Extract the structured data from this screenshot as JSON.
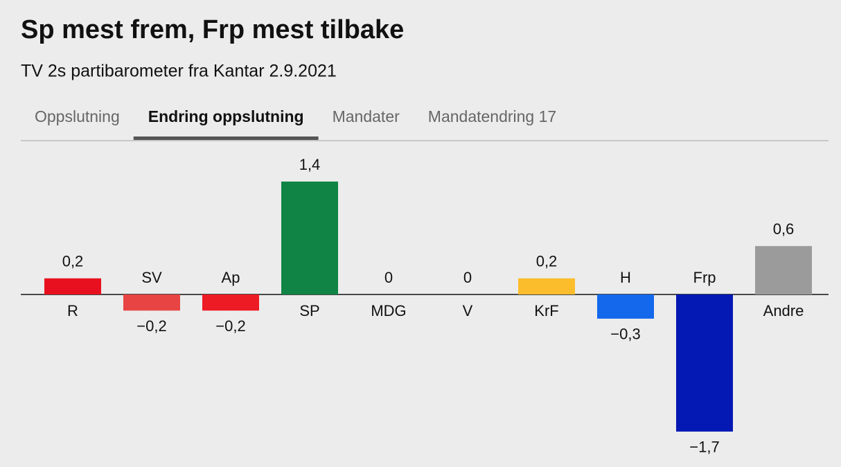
{
  "tabs": [
    "Oppslutning",
    "Endring oppslutning",
    "Mandater",
    "Mandatendring 17"
  ],
  "active_tab": 1,
  "chart_data": {
    "type": "bar",
    "title": "Sp mest frem, Frp mest tilbake",
    "subtitle": "TV 2s partibarometer fra Kantar 2.9.2021",
    "categories": [
      "R",
      "SV",
      "Ap",
      "SP",
      "MDG",
      "V",
      "KrF",
      "H",
      "Frp",
      "Andre"
    ],
    "values": [
      0.2,
      -0.2,
      -0.2,
      1.4,
      0,
      0,
      0.2,
      -0.3,
      -1.7,
      0.6
    ],
    "value_labels": [
      "0,2",
      "−0,2",
      "−0,2",
      "1,4",
      "0",
      "0",
      "0,2",
      "−0,3",
      "−1,7",
      "0,6"
    ],
    "colors": [
      "#e8101e",
      "#e84444",
      "#ed1b24",
      "#108444",
      "#5a9a3a",
      "#2c7a6e",
      "#fbbd2c",
      "#1368ec",
      "#0418b4",
      "#9b9b9b"
    ]
  }
}
